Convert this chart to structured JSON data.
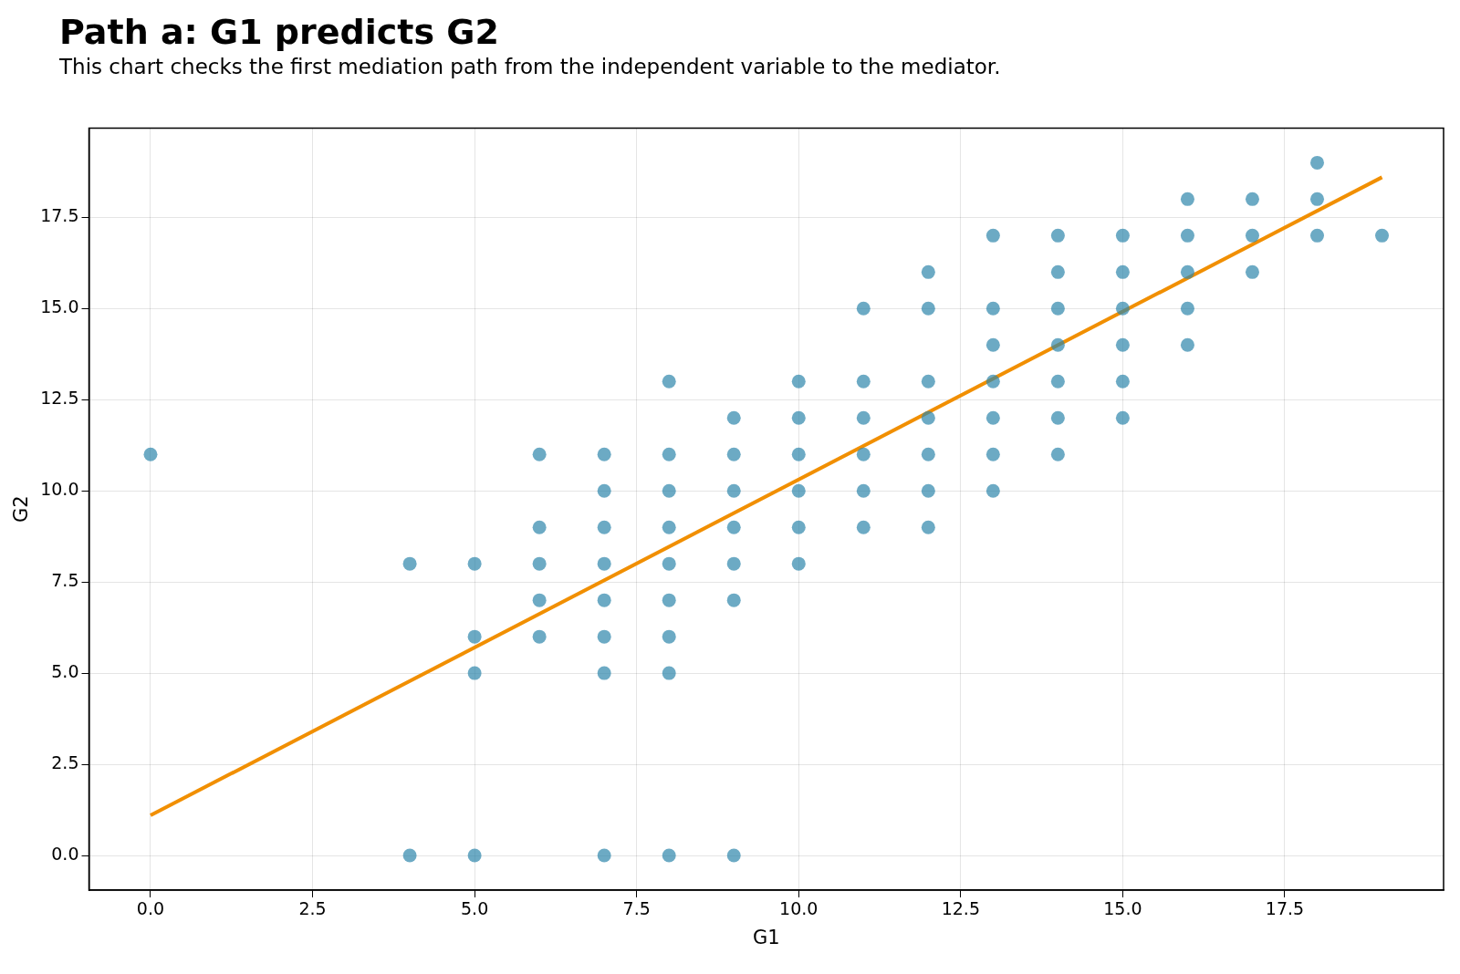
{
  "chart_data": {
    "type": "scatter",
    "title": "Path a: G1 predicts G2",
    "subtitle": "This chart checks the first mediation path from the independent variable to the mediator.",
    "xlabel": "G1",
    "ylabel": "G2",
    "xlim": [
      -0.95,
      19.95
    ],
    "xticks": [
      {
        "value": 0,
        "label": "0.0"
      },
      {
        "value": 2.5,
        "label": "2.5"
      },
      {
        "value": 5,
        "label": "5.0"
      },
      {
        "value": 7.5,
        "label": "7.5"
      },
      {
        "value": 10,
        "label": "10.0"
      },
      {
        "value": 12.5,
        "label": "12.5"
      },
      {
        "value": 15,
        "label": "15.0"
      },
      {
        "value": 17.5,
        "label": "17.5"
      }
    ],
    "ylim": [
      -0.95,
      19.95
    ],
    "yticks": [
      {
        "value": 0,
        "label": "0.0"
      },
      {
        "value": 2.5,
        "label": "2.5"
      },
      {
        "value": 5,
        "label": "5.0"
      },
      {
        "value": 7.5,
        "label": "7.5"
      },
      {
        "value": 10,
        "label": "10.0"
      },
      {
        "value": 12.5,
        "label": "12.5"
      },
      {
        "value": 15,
        "label": "15.0"
      },
      {
        "value": 17.5,
        "label": "17.5"
      }
    ],
    "grid": true,
    "legend": false,
    "series": [
      {
        "marker": "circle",
        "color": "#2e86ab",
        "x": [
          0,
          4,
          4,
          5,
          5,
          5,
          5,
          6,
          6,
          6,
          6,
          6,
          7,
          7,
          7,
          7,
          7,
          7,
          7,
          7,
          8,
          8,
          8,
          8,
          8,
          8,
          8,
          8,
          8,
          9,
          9,
          9,
          9,
          9,
          9,
          9,
          10,
          10,
          10,
          10,
          10,
          10,
          11,
          11,
          11,
          11,
          11,
          11,
          12,
          12,
          12,
          12,
          12,
          12,
          12,
          13,
          13,
          13,
          13,
          13,
          13,
          13,
          14,
          14,
          14,
          14,
          14,
          14,
          14,
          15,
          15,
          15,
          15,
          15,
          15,
          16,
          16,
          16,
          16,
          16,
          17,
          17,
          17,
          18,
          18,
          18,
          19
        ],
        "values": [
          11,
          8,
          0,
          8,
          6,
          5,
          0,
          11,
          9,
          8,
          7,
          6,
          11,
          10,
          9,
          8,
          7,
          6,
          5,
          0,
          13,
          11,
          10,
          9,
          8,
          7,
          6,
          5,
          0,
          12,
          11,
          10,
          9,
          8,
          7,
          0,
          13,
          12,
          11,
          10,
          9,
          8,
          15,
          13,
          12,
          11,
          10,
          9,
          16,
          15,
          13,
          12,
          11,
          10,
          9,
          17,
          15,
          14,
          13,
          12,
          11,
          10,
          17,
          16,
          15,
          14,
          13,
          12,
          11,
          17,
          16,
          15,
          14,
          13,
          12,
          18,
          17,
          16,
          15,
          14,
          18,
          17,
          16,
          19,
          18,
          17,
          17
        ]
      },
      {
        "type": "line",
        "marker": "none",
        "color": "#f18f01",
        "x": [
          0,
          19
        ],
        "values": [
          1.1,
          18.6
        ]
      }
    ]
  }
}
